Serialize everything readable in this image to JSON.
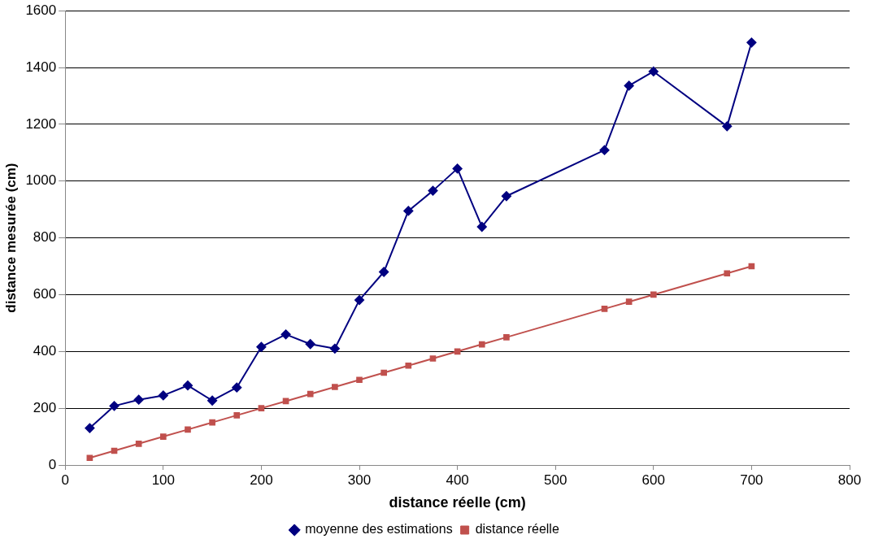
{
  "chart_data": {
    "type": "line",
    "xlabel": "distance réelle (cm)",
    "ylabel": "distance mesurée (cm)",
    "xlim": [
      0,
      800
    ],
    "xticks": [
      0,
      100,
      200,
      300,
      400,
      500,
      600,
      700,
      800
    ],
    "ylim": [
      0,
      1600
    ],
    "yticks": [
      0,
      200,
      400,
      600,
      800,
      1000,
      1200,
      1400,
      1600
    ],
    "grid": "y",
    "legend": "bottom",
    "line_style": "solid",
    "x": [
      25,
      50,
      75,
      100,
      125,
      150,
      175,
      200,
      225,
      250,
      275,
      300,
      325,
      350,
      375,
      400,
      425,
      450,
      550,
      575,
      600,
      675,
      700
    ],
    "series": [
      {
        "name": "moyenne des estimations",
        "color": "#000080",
        "marker": "diamond",
        "values": [
          130,
          208,
          230,
          245,
          280,
          227,
          273,
          416,
          460,
          426,
          410,
          581,
          680,
          895,
          966,
          1044,
          839,
          947,
          1109,
          1336,
          1386,
          1193,
          1488
        ]
      },
      {
        "name": "distance réelle",
        "color": "#c0504d",
        "marker": "square",
        "values": [
          25,
          50,
          75,
          100,
          125,
          150,
          175,
          200,
          225,
          250,
          275,
          300,
          325,
          350,
          375,
          400,
          425,
          450,
          550,
          575,
          600,
          675,
          700
        ]
      }
    ]
  }
}
